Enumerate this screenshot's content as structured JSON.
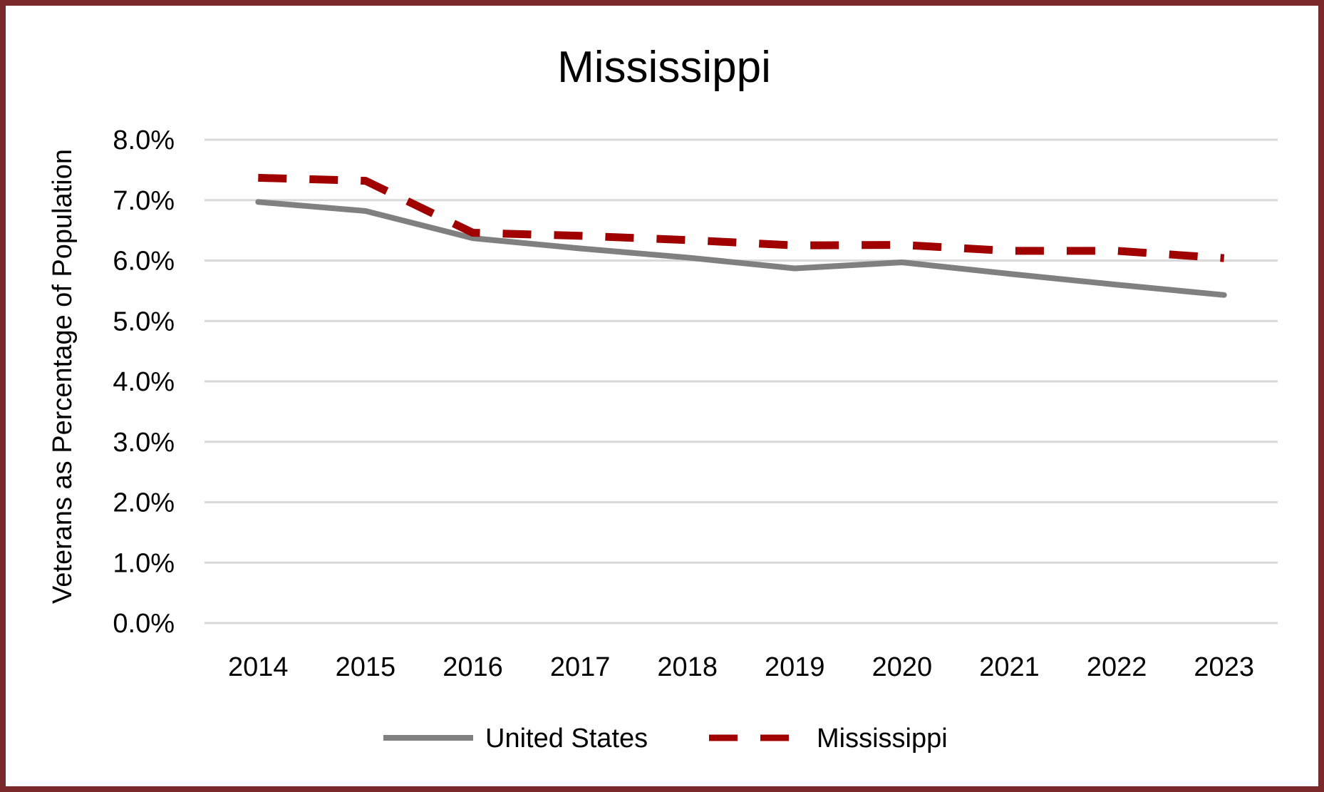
{
  "chart_data": {
    "type": "line",
    "title": "Mississippi",
    "ylabel": "Veterans as Percentage of Population",
    "xlabel": "",
    "categories": [
      "2014",
      "2015",
      "2016",
      "2017",
      "2018",
      "2019",
      "2020",
      "2021",
      "2022",
      "2023"
    ],
    "ylim": [
      0,
      8
    ],
    "yticks": [
      "0.0%",
      "1.0%",
      "2.0%",
      "3.0%",
      "4.0%",
      "5.0%",
      "6.0%",
      "7.0%",
      "8.0%"
    ],
    "grid": true,
    "legend": "bottom",
    "series": [
      {
        "name": "United States",
        "values": [
          6.97,
          6.82,
          6.37,
          6.2,
          6.05,
          5.87,
          5.97,
          5.78,
          5.6,
          5.43
        ],
        "color": "#808080",
        "style": "solid"
      },
      {
        "name": "Mississippi",
        "values": [
          7.37,
          7.32,
          6.46,
          6.41,
          6.34,
          6.25,
          6.26,
          6.16,
          6.16,
          6.04
        ],
        "color": "#a00000",
        "style": "dashed"
      }
    ]
  }
}
